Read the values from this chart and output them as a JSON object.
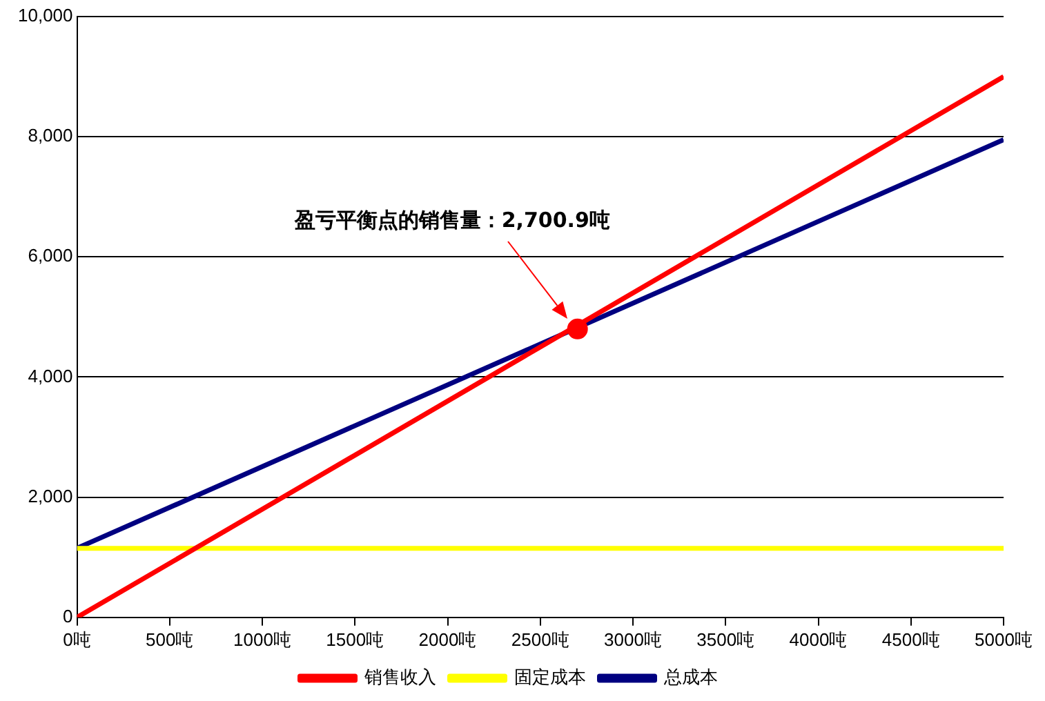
{
  "chart_data": {
    "type": "line",
    "series": [
      {
        "name": "销售收入",
        "color": "#ff0000",
        "x": [
          0,
          5000
        ],
        "values": [
          0,
          9000
        ]
      },
      {
        "name": "固定成本",
        "color": "#ffff00",
        "x": [
          0,
          5000
        ],
        "values": [
          1150,
          1150
        ]
      },
      {
        "name": "总成本",
        "color": "#000080",
        "x": [
          0,
          5000
        ],
        "values": [
          1150,
          7950
        ]
      },
      {
        "type": "scatter",
        "color": "#ff0000",
        "marker": "circle",
        "x": [
          2700.9
        ],
        "values": [
          4800
        ]
      }
    ],
    "xlim": [
      0,
      5000
    ],
    "xticks": [
      {
        "value": 0,
        "label": "0吨"
      },
      {
        "value": 500,
        "label": "500吨"
      },
      {
        "value": 1000,
        "label": "1000吨"
      },
      {
        "value": 1500,
        "label": "1500吨"
      },
      {
        "value": 2000,
        "label": "2000吨"
      },
      {
        "value": 2500,
        "label": "2500吨"
      },
      {
        "value": 3000,
        "label": "3000吨"
      },
      {
        "value": 3500,
        "label": "3500吨"
      },
      {
        "value": 4000,
        "label": "4000吨"
      },
      {
        "value": 4500,
        "label": "4500吨"
      },
      {
        "value": 5000,
        "label": "5000吨"
      }
    ],
    "ylim": [
      0,
      10000
    ],
    "yticks": [
      0,
      {
        "value": 2000,
        "label": "2,000"
      },
      {
        "value": 4000,
        "label": "4,000"
      },
      {
        "value": 6000,
        "label": "6,000"
      },
      {
        "value": 8000,
        "label": "8,000"
      },
      {
        "value": 10000,
        "label": "10,000"
      }
    ],
    "grid": "y",
    "legend": "bottom",
    "line_style": "solid",
    "annotations": [
      "盈亏平衡点的销售量：2,700.9吨"
    ]
  }
}
